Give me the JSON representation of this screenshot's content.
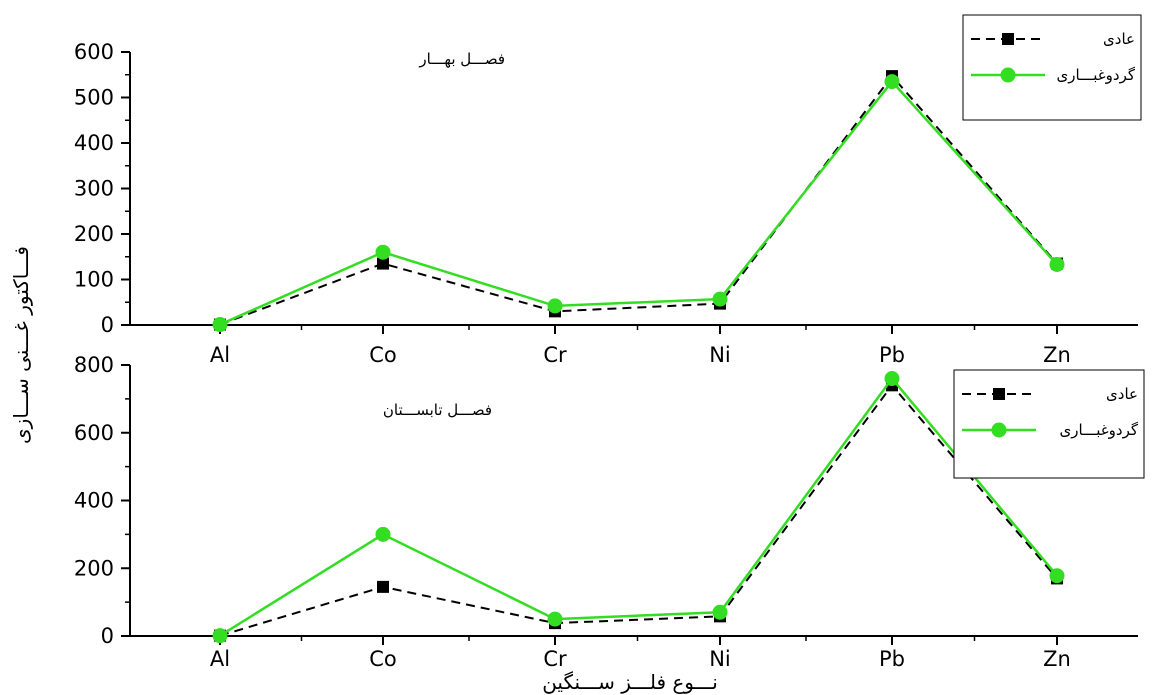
{
  "figure": {
    "ylabel": "فـــاکتور غـــنی ســـازی",
    "xlabel": "نـــوع فلـــز ســـنگین"
  },
  "chart_data": [
    {
      "type": "line",
      "annotation": "فصـــل بهـــار",
      "categories": [
        "Al",
        "Co",
        "Cr",
        "Ni",
        "Pb",
        "Zn"
      ],
      "ylim": [
        0,
        600
      ],
      "yticks": [
        0,
        100,
        200,
        300,
        400,
        500,
        600
      ],
      "legend_position": "top-right",
      "series": [
        {
          "name": "عادی",
          "values": [
            1,
            135,
            30,
            47,
            547,
            135
          ],
          "color": "#000000",
          "marker": "square",
          "dash": true
        },
        {
          "name": "گردوغبـــاری",
          "values": [
            1,
            160,
            42,
            57,
            535,
            133
          ],
          "color": "#33dd22",
          "marker": "circle",
          "dash": false
        }
      ]
    },
    {
      "type": "line",
      "annotation": "فصـــل تابســـتان",
      "categories": [
        "Al",
        "Co",
        "Cr",
        "Ni",
        "Pb",
        "Zn"
      ],
      "ylim": [
        0,
        800
      ],
      "yticks": [
        0,
        200,
        400,
        600,
        800
      ],
      "legend_position": "top-right",
      "series": [
        {
          "name": "عادی",
          "values": [
            1,
            145,
            38,
            58,
            740,
            170
          ],
          "color": "#000000",
          "marker": "square",
          "dash": true
        },
        {
          "name": "گردوغبـــاری",
          "values": [
            1,
            300,
            50,
            70,
            760,
            178
          ],
          "color": "#33dd22",
          "marker": "circle",
          "dash": false
        }
      ]
    }
  ]
}
